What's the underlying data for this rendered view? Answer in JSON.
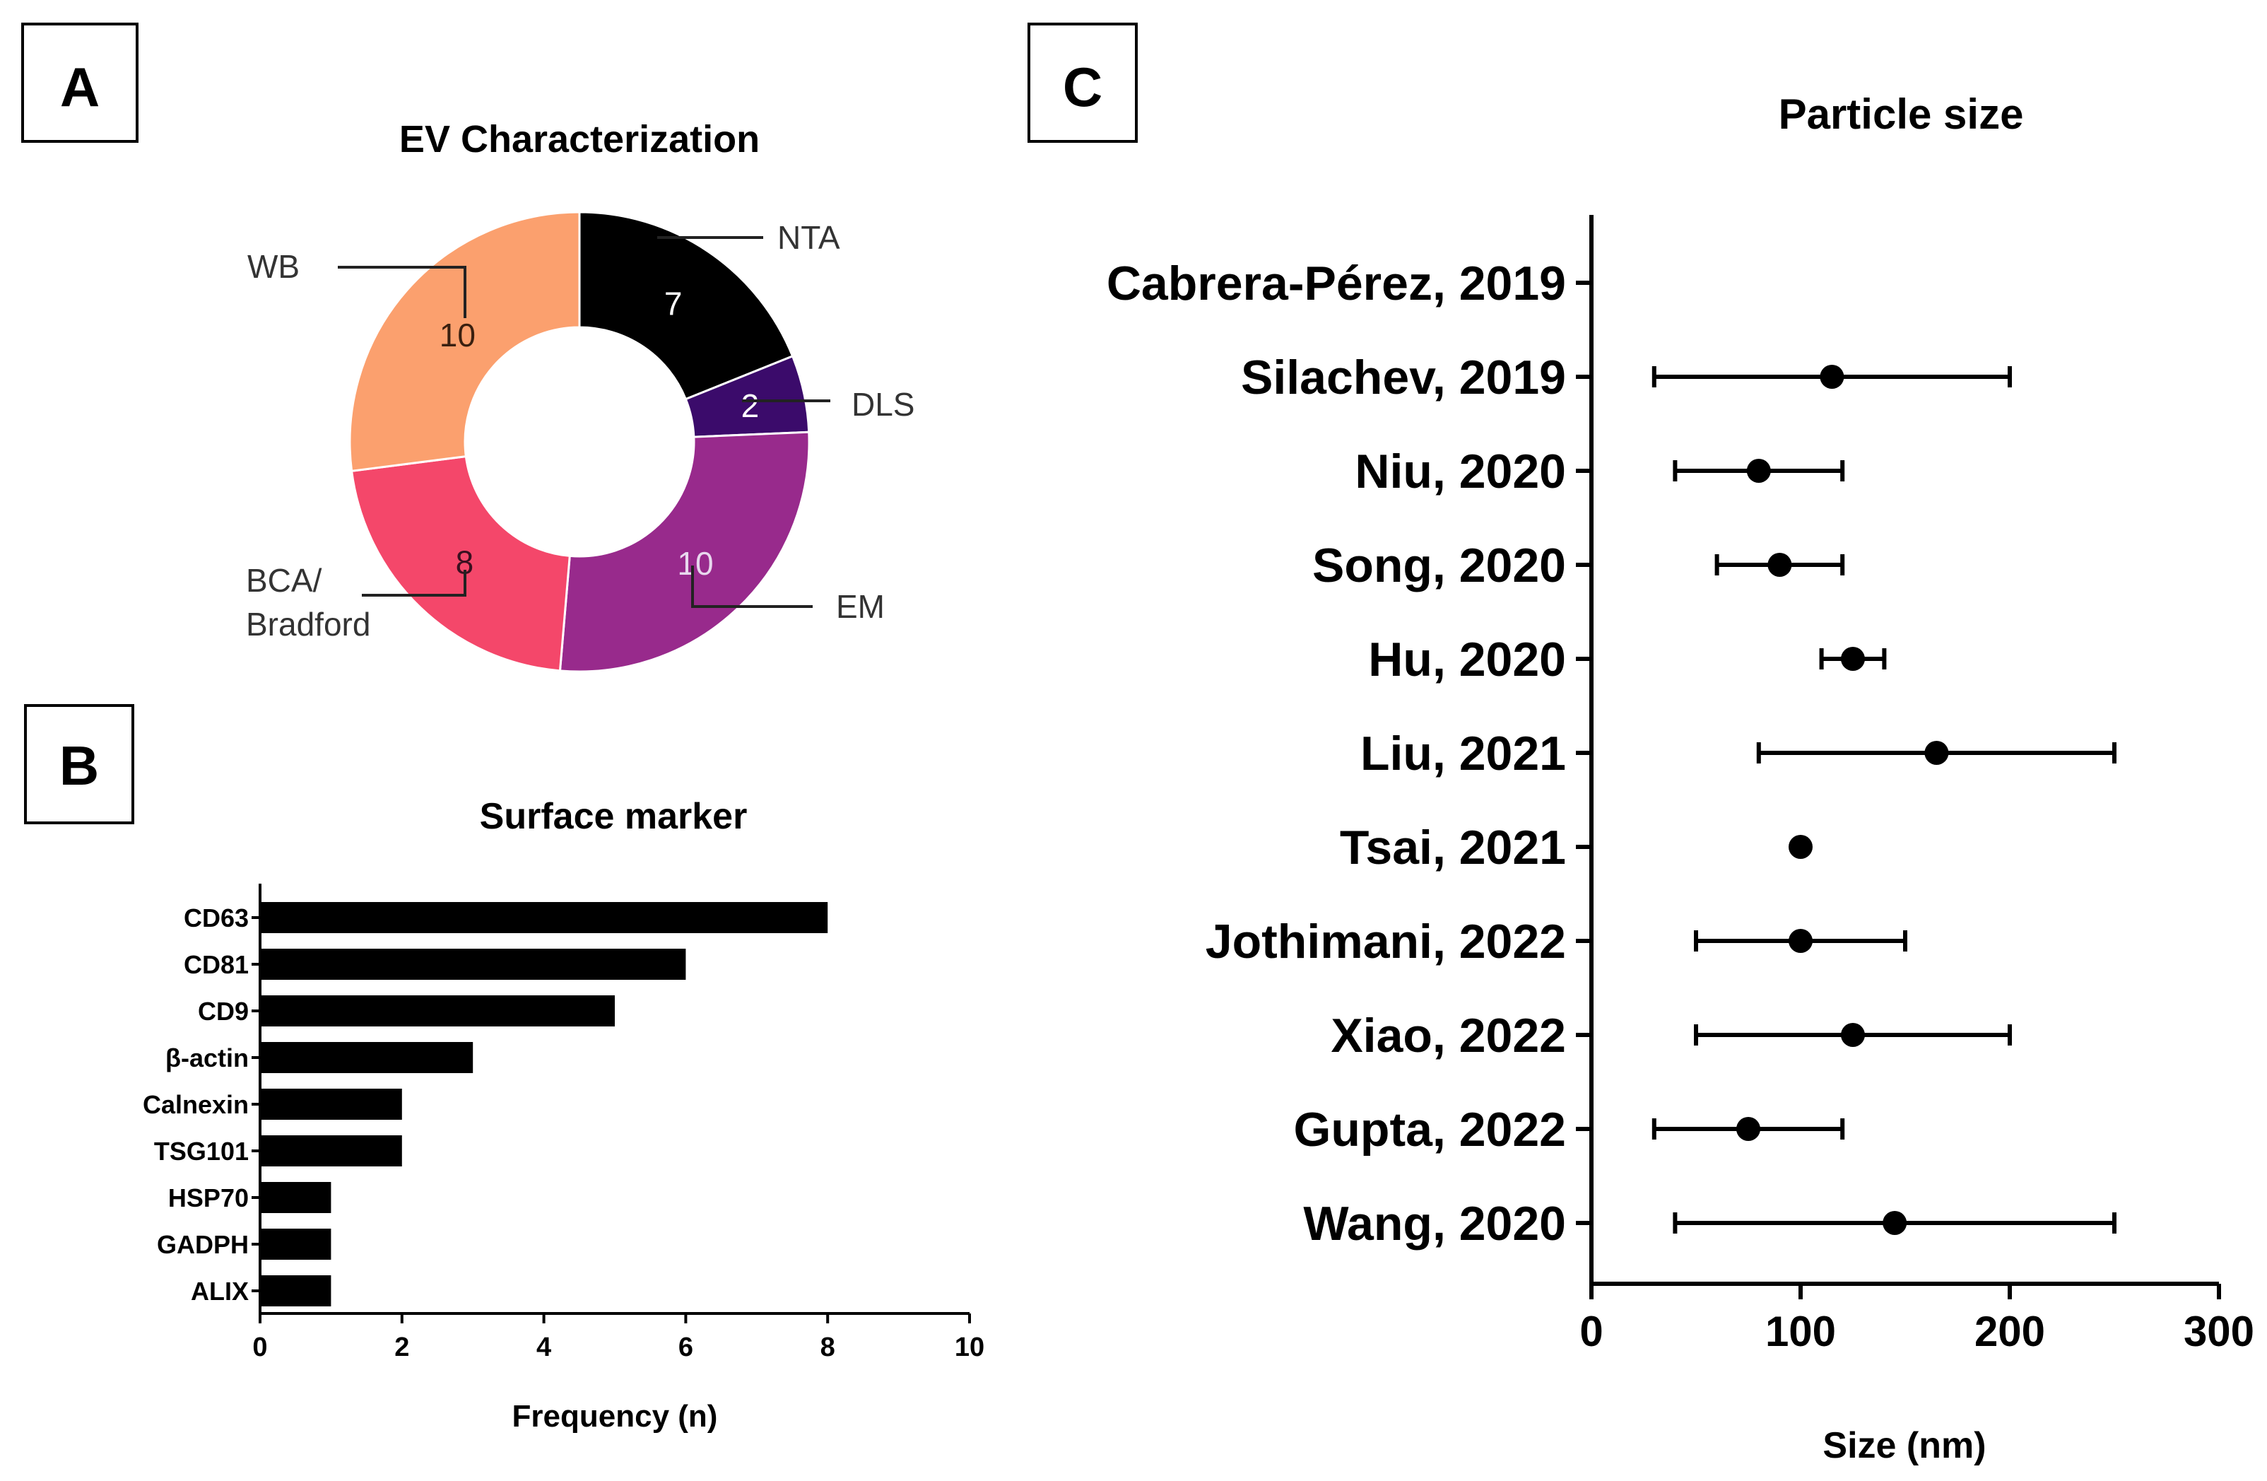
{
  "panel_labels": {
    "a": "A",
    "b": "B",
    "c": "C"
  },
  "colors": {
    "nta": "#000000",
    "dls": "#3b0b6b",
    "em": "#982a8c",
    "bca": "#f4476a",
    "wb": "#fba06e",
    "ink": "#000000",
    "leader": "#222222"
  },
  "chart_data": [
    {
      "panel": "A",
      "type": "pie",
      "variant": "donut",
      "title": "EV Characterization",
      "slices": [
        {
          "label": "NTA",
          "value": 7,
          "value_label": "7"
        },
        {
          "label": "DLS",
          "value": 2,
          "value_label": "2"
        },
        {
          "label": "EM",
          "value": 10,
          "value_label": "10"
        },
        {
          "label": "BCA/",
          "label2": "Bradford",
          "value": 8,
          "value_label": "8"
        },
        {
          "label": "WB",
          "value": 10,
          "value_label": "10"
        }
      ]
    },
    {
      "panel": "B",
      "type": "bar",
      "orientation": "horizontal",
      "title": "Surface marker",
      "xlabel": "Frequency (n)",
      "xlim": [
        0,
        10
      ],
      "xticks": [
        0,
        2,
        4,
        6,
        8,
        10
      ],
      "categories": [
        "CD63",
        "CD81",
        "CD9",
        "β-actin",
        "Calnexin",
        "TSG101",
        "HSP70",
        "GADPH",
        "ALIX"
      ],
      "values": [
        8,
        6,
        5,
        3,
        2,
        2,
        1,
        1,
        1
      ]
    },
    {
      "panel": "C",
      "type": "scatter",
      "variant": "forest",
      "title": "Particle size",
      "xlabel": "Size (nm)",
      "xlim": [
        0,
        300
      ],
      "xticks": [
        0,
        100,
        200,
        300
      ],
      "studies": [
        {
          "label": "Cabrera-Pérez, 2019",
          "mean": null,
          "low": null,
          "high": null
        },
        {
          "label": "Silachev, 2019",
          "mean": 115,
          "low": 30,
          "high": 200
        },
        {
          "label": "Niu, 2020",
          "mean": 80,
          "low": 40,
          "high": 120
        },
        {
          "label": "Song, 2020",
          "mean": 90,
          "low": 60,
          "high": 120
        },
        {
          "label": "Hu, 2020",
          "mean": 125,
          "low": 110,
          "high": 140
        },
        {
          "label": "Liu, 2021",
          "mean": 165,
          "low": 80,
          "high": 250
        },
        {
          "label": "Tsai, 2021",
          "mean": 100,
          "low": 100,
          "high": 100
        },
        {
          "label": "Jothimani, 2022",
          "mean": 100,
          "low": 50,
          "high": 150
        },
        {
          "label": "Xiao, 2022",
          "mean": 125,
          "low": 50,
          "high": 200
        },
        {
          "label": "Gupta, 2022",
          "mean": 75,
          "low": 30,
          "high": 120
        },
        {
          "label": "Wang, 2020",
          "mean": 145,
          "low": 40,
          "high": 250
        }
      ]
    }
  ]
}
